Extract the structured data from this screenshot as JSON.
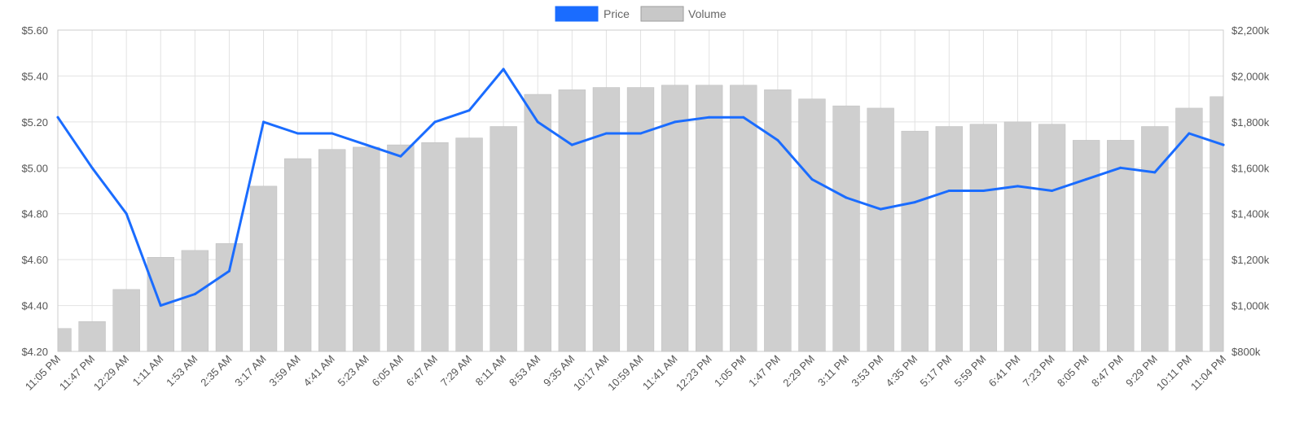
{
  "legend": [
    {
      "name": "Price",
      "color": "#1a6cff",
      "border": "#1a6cff"
    },
    {
      "name": "Volume",
      "color": "#c8c8c8",
      "border": "#9e9e9e"
    }
  ],
  "colors": {
    "price_line": "#1a6cff",
    "volume_bar": "#cfcfcf",
    "grid": "#e2e2e2",
    "axis_text": "#555555"
  },
  "chart_data": {
    "type": "line",
    "title": "",
    "grid": true,
    "legend_position": "top-center",
    "y_left": {
      "label": "",
      "range": [
        4.2,
        5.6
      ],
      "ticks": [
        "$4.20",
        "$4.40",
        "$4.60",
        "$4.80",
        "$5.00",
        "$5.20",
        "$5.40",
        "$5.60"
      ]
    },
    "y_right": {
      "label": "",
      "range": [
        800,
        2200
      ],
      "unit": "k",
      "ticks": [
        "$800k",
        "$1,000k",
        "$1,200k",
        "$1,400k",
        "$1,600k",
        "$1,800k",
        "$2,000k",
        "$2,200k"
      ]
    },
    "x_ticks": [
      "11:05 PM",
      "11:47 PM",
      "12:29 AM",
      "1:11 AM",
      "1:53 AM",
      "2:35 AM",
      "3:17 AM",
      "3:59 AM",
      "4:41 AM",
      "5:23 AM",
      "6:05 AM",
      "6:47 AM",
      "7:29 AM",
      "8:11 AM",
      "8:53 AM",
      "9:35 AM",
      "10:17 AM",
      "10:59 AM",
      "11:41 AM",
      "12:23 PM",
      "1:05 PM",
      "1:47 PM",
      "2:29 PM",
      "3:11 PM",
      "3:53 PM",
      "4:35 PM",
      "5:17 PM",
      "5:59 PM",
      "6:41 PM",
      "7:23 PM",
      "8:05 PM",
      "8:47 PM",
      "9:29 PM",
      "10:11 PM",
      "11:04 PM"
    ],
    "series": [
      {
        "name": "Price",
        "axis": "left",
        "type": "line",
        "x": [
          "11:05 PM",
          "11:47 PM",
          "12:29 AM",
          "1:11 AM",
          "1:53 AM",
          "2:35 AM",
          "3:17 AM",
          "3:59 AM",
          "4:41 AM",
          "5:23 AM",
          "6:05 AM",
          "6:47 AM",
          "7:29 AM",
          "8:11 AM",
          "8:53 AM",
          "9:35 AM",
          "10:17 AM",
          "10:59 AM",
          "11:41 AM",
          "12:23 PM",
          "1:05 PM",
          "1:47 PM",
          "2:29 PM",
          "3:11 PM",
          "3:53 PM",
          "4:35 PM",
          "5:17 PM",
          "5:59 PM",
          "6:41 PM",
          "7:23 PM",
          "8:05 PM",
          "8:47 PM",
          "9:29 PM",
          "10:11 PM",
          "11:04 PM"
        ],
        "values": [
          5.22,
          5.0,
          4.8,
          4.4,
          4.45,
          4.55,
          5.2,
          5.15,
          5.15,
          5.1,
          5.05,
          5.2,
          5.25,
          5.43,
          5.2,
          5.1,
          5.15,
          5.15,
          5.2,
          5.22,
          5.22,
          5.12,
          4.95,
          4.87,
          4.82,
          4.85,
          4.9,
          4.9,
          4.92,
          4.9,
          4.95,
          5.0,
          4.98,
          5.15,
          5.1
        ]
      },
      {
        "name": "Volume",
        "axis": "right",
        "type": "bar",
        "x": [
          "11:05 PM",
          "11:47 PM",
          "12:29 AM",
          "1:11 AM",
          "1:53 AM",
          "2:35 AM",
          "3:17 AM",
          "3:59 AM",
          "4:41 AM",
          "5:23 AM",
          "6:05 AM",
          "6:47 AM",
          "7:29 AM",
          "8:11 AM",
          "8:53 AM",
          "9:35 AM",
          "10:17 AM",
          "10:59 AM",
          "11:41 AM",
          "12:23 PM",
          "1:05 PM",
          "1:47 PM",
          "2:29 PM",
          "3:11 PM",
          "3:53 PM",
          "4:35 PM",
          "5:17 PM",
          "5:59 PM",
          "6:41 PM",
          "7:23 PM",
          "8:05 PM",
          "8:47 PM",
          "9:29 PM",
          "10:11 PM",
          "11:04 PM"
        ],
        "values": [
          900,
          930,
          1070,
          1210,
          1240,
          1270,
          1520,
          1640,
          1680,
          1690,
          1700,
          1710,
          1730,
          1780,
          1920,
          1940,
          1950,
          1950,
          1960,
          1960,
          1960,
          1940,
          1900,
          1870,
          1860,
          1760,
          1780,
          1790,
          1800,
          1790,
          1720,
          1720,
          1780,
          1860,
          1910
        ]
      }
    ]
  }
}
